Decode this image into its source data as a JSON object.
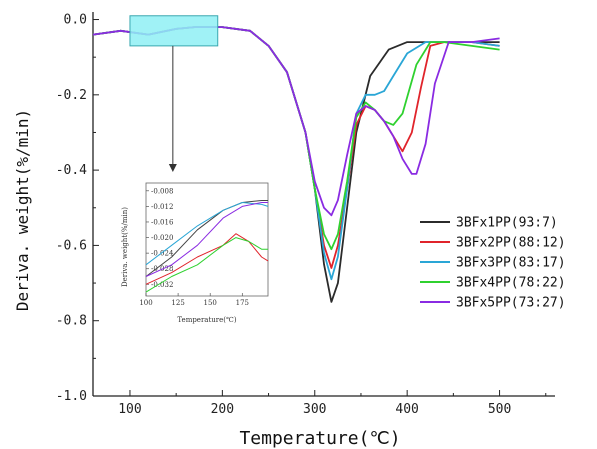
{
  "chart_data": [
    {
      "type": "line",
      "xlabel": "Temperature(℃)",
      "ylabel": "Deriva. weight(%/min)",
      "xlim": [
        60,
        560
      ],
      "ylim": [
        -1.0,
        0.02
      ],
      "xticks": [
        100,
        200,
        300,
        400,
        500
      ],
      "yticks": [
        0.0,
        -0.2,
        -0.4,
        -0.6,
        -0.8,
        -1.0
      ],
      "xtick_labels": [
        "100",
        "200",
        "300",
        "400",
        "500"
      ],
      "ytick_labels": [
        "0.0",
        "-0.2",
        "-0.4",
        "-0.6",
        "-0.8",
        "-1.0"
      ],
      "grid": false,
      "legend_position": "right",
      "series": [
        {
          "name": "3BFx1PP(93:7)",
          "color": "#2b2b2b",
          "x": [
            60,
            90,
            120,
            150,
            170,
            200,
            230,
            250,
            270,
            290,
            300,
            310,
            318,
            325,
            335,
            345,
            360,
            380,
            400,
            430,
            470,
            500
          ],
          "y": [
            -0.04,
            -0.03,
            -0.04,
            -0.025,
            -0.02,
            -0.02,
            -0.03,
            -0.07,
            -0.14,
            -0.3,
            -0.45,
            -0.65,
            -0.75,
            -0.7,
            -0.5,
            -0.3,
            -0.15,
            -0.08,
            -0.06,
            -0.06,
            -0.06,
            -0.06
          ]
        },
        {
          "name": "3BFx2PP(88:12)",
          "color": "#e0242b",
          "x": [
            60,
            90,
            120,
            150,
            170,
            200,
            230,
            250,
            270,
            290,
            300,
            310,
            318,
            325,
            335,
            345,
            355,
            365,
            375,
            385,
            395,
            405,
            415,
            425,
            440,
            470,
            500
          ],
          "y": [
            -0.04,
            -0.03,
            -0.04,
            -0.025,
            -0.02,
            -0.02,
            -0.03,
            -0.07,
            -0.14,
            -0.3,
            -0.45,
            -0.6,
            -0.66,
            -0.6,
            -0.45,
            -0.28,
            -0.23,
            -0.24,
            -0.27,
            -0.31,
            -0.35,
            -0.3,
            -0.18,
            -0.07,
            -0.06,
            -0.06,
            -0.07
          ]
        },
        {
          "name": "3BFx3PP(83:17)",
          "color": "#2aa6d6",
          "x": [
            60,
            90,
            120,
            150,
            170,
            200,
            230,
            250,
            270,
            290,
            300,
            310,
            318,
            325,
            335,
            345,
            355,
            365,
            375,
            385,
            400,
            420,
            440,
            470,
            500
          ],
          "y": [
            -0.04,
            -0.03,
            -0.04,
            -0.025,
            -0.02,
            -0.02,
            -0.03,
            -0.07,
            -0.14,
            -0.3,
            -0.45,
            -0.62,
            -0.69,
            -0.63,
            -0.45,
            -0.25,
            -0.2,
            -0.2,
            -0.19,
            -0.15,
            -0.09,
            -0.06,
            -0.06,
            -0.06,
            -0.07
          ]
        },
        {
          "name": "3BFx4PP(78:22)",
          "color": "#2fd12f",
          "x": [
            60,
            90,
            120,
            150,
            170,
            200,
            230,
            250,
            270,
            290,
            300,
            310,
            318,
            325,
            335,
            345,
            355,
            365,
            375,
            385,
            395,
            410,
            425,
            440,
            470,
            500
          ],
          "y": [
            -0.04,
            -0.03,
            -0.04,
            -0.025,
            -0.02,
            -0.02,
            -0.03,
            -0.07,
            -0.14,
            -0.3,
            -0.45,
            -0.57,
            -0.61,
            -0.57,
            -0.43,
            -0.26,
            -0.22,
            -0.24,
            -0.27,
            -0.28,
            -0.25,
            -0.12,
            -0.06,
            -0.06,
            -0.07,
            -0.08
          ]
        },
        {
          "name": "3BFx5PP(73:27)",
          "color": "#8a2be2",
          "x": [
            60,
            90,
            120,
            150,
            170,
            200,
            230,
            250,
            270,
            290,
            300,
            310,
            318,
            325,
            335,
            345,
            355,
            365,
            375,
            385,
            395,
            405,
            410,
            420,
            430,
            445,
            470,
            500
          ],
          "y": [
            -0.04,
            -0.03,
            -0.04,
            -0.025,
            -0.02,
            -0.02,
            -0.03,
            -0.07,
            -0.14,
            -0.3,
            -0.43,
            -0.5,
            -0.52,
            -0.48,
            -0.36,
            -0.25,
            -0.23,
            -0.24,
            -0.27,
            -0.31,
            -0.37,
            -0.41,
            -0.41,
            -0.33,
            -0.17,
            -0.06,
            -0.06,
            -0.05
          ]
        }
      ]
    },
    {
      "type": "line",
      "xlabel": "Temperature(℃)",
      "ylabel": "Deriva. weight(%/min)",
      "xlim": [
        100,
        195
      ],
      "ylim": [
        -0.035,
        -0.006
      ],
      "xticks": [
        100,
        125,
        150,
        175
      ],
      "yticks": [
        -0.008,
        -0.012,
        -0.016,
        -0.02,
        -0.024,
        -0.028,
        -0.032
      ],
      "xtick_labels": [
        "100",
        "125",
        "150",
        "175"
      ],
      "ytick_labels": [
        "-0.008",
        "-0.012",
        "-0.016",
        "-0.020",
        "-0.024",
        "-0.028",
        "-0.032"
      ],
      "series": [
        {
          "name": "3BFx1PP(93:7)",
          "color": "#444444",
          "x": [
            100,
            120,
            140,
            160,
            175,
            190,
            195
          ],
          "y": [
            -0.03,
            -0.025,
            -0.018,
            -0.013,
            -0.011,
            -0.0105,
            -0.0105
          ]
        },
        {
          "name": "3BFx2PP(88:12)",
          "color": "#e0242b",
          "x": [
            100,
            120,
            140,
            160,
            170,
            180,
            190,
            195
          ],
          "y": [
            -0.032,
            -0.029,
            -0.025,
            -0.022,
            -0.019,
            -0.021,
            -0.025,
            -0.026
          ]
        },
        {
          "name": "3BFx3PP(83:17)",
          "color": "#2aa6d6",
          "x": [
            100,
            120,
            140,
            160,
            175,
            190,
            195
          ],
          "y": [
            -0.027,
            -0.022,
            -0.017,
            -0.013,
            -0.011,
            -0.0115,
            -0.012
          ]
        },
        {
          "name": "3BFx4PP(78:22)",
          "color": "#2fd12f",
          "x": [
            100,
            120,
            140,
            160,
            170,
            180,
            190,
            195
          ],
          "y": [
            -0.034,
            -0.03,
            -0.027,
            -0.022,
            -0.02,
            -0.021,
            -0.023,
            -0.023
          ]
        },
        {
          "name": "3BFx5PP(73:27)",
          "color": "#8a2be2",
          "x": [
            100,
            120,
            140,
            160,
            175,
            190,
            195
          ],
          "y": [
            -0.03,
            -0.027,
            -0.022,
            -0.015,
            -0.012,
            -0.011,
            -0.011
          ]
        }
      ]
    }
  ]
}
